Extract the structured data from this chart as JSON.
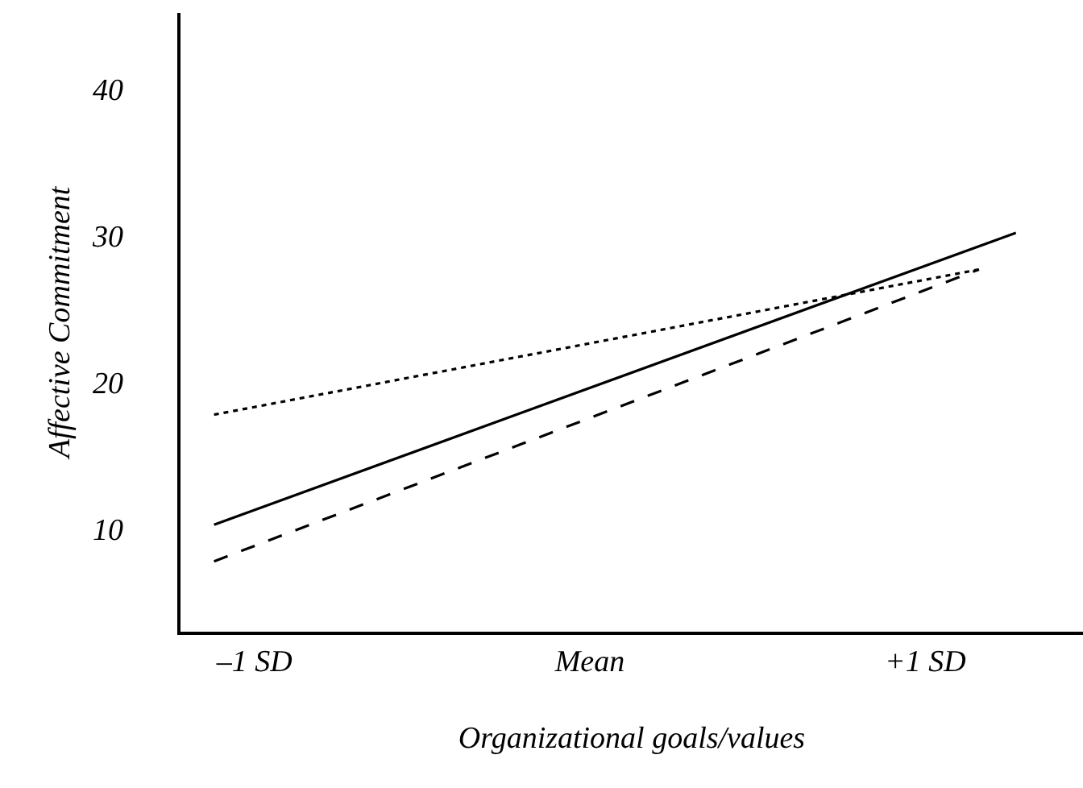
{
  "chart_data": {
    "type": "line",
    "xlabel": "Organizational goals/values",
    "ylabel": "Affective Commitment",
    "xlim": [
      -1.22,
      1.47
    ],
    "xticks": [
      {
        "value": -1,
        "label": "–1 SD"
      },
      {
        "value": 0,
        "label": "Mean"
      },
      {
        "value": 1,
        "label": "+1 SD"
      }
    ],
    "ylim": [
      3,
      45.2
    ],
    "yticks": [
      10,
      20,
      30,
      40
    ],
    "marker": "none",
    "series": [
      {
        "color": "#000000",
        "line_style": "solid",
        "x": [
          -1.12,
          1.27
        ],
        "values": [
          10.3,
          30.2
        ]
      },
      {
        "color": "#000000",
        "line_style": "dashed",
        "x": [
          -1.12,
          1.16
        ],
        "values": [
          7.8,
          27.7
        ]
      },
      {
        "color": "#000000",
        "line_style": "dotted",
        "x": [
          -1.12,
          1.16
        ],
        "values": [
          17.8,
          27.7
        ]
      }
    ]
  }
}
